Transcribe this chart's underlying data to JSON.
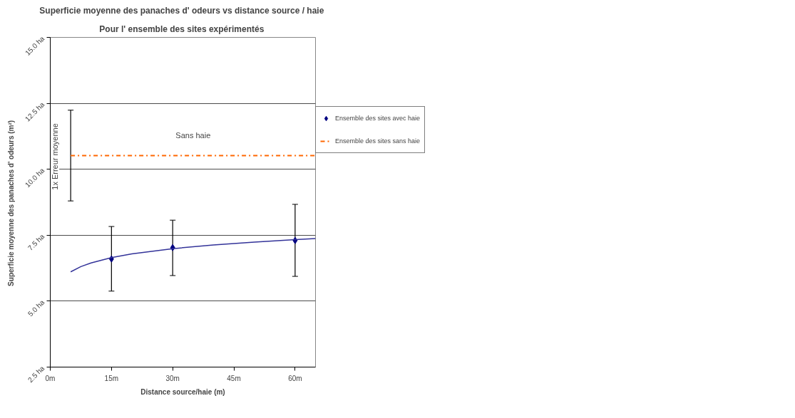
{
  "chart_data": {
    "type": "scatter",
    "title": "Superficie moyenne des panaches d'  odeurs vs distance source / haie",
    "subtitle": "Pour l'  ensemble des sites expérimentés",
    "xlabel": "Distance source/haie (m)",
    "ylabel": "Superficie moyenne des panaches d'  odeurs (m²)",
    "xlim": [
      0,
      65
    ],
    "xticks": [
      {
        "value": 0,
        "label": "0m"
      },
      {
        "value": 15,
        "label": "15m"
      },
      {
        "value": 30,
        "label": "30m"
      },
      {
        "value": 45,
        "label": "45m"
      },
      {
        "value": 60,
        "label": "60m"
      }
    ],
    "ylim": [
      2.5,
      15
    ],
    "yticks": [
      {
        "value": 2.5,
        "label": "2.5 ha"
      },
      {
        "value": 5,
        "label": "5.0 ha"
      },
      {
        "value": 7.5,
        "label": "7.5 ha"
      },
      {
        "value": 10,
        "label": "10.0 ha"
      },
      {
        "value": 12.5,
        "label": "12.5 ha"
      },
      {
        "value": 15,
        "label": "15.0 ha"
      }
    ],
    "grid": "y",
    "legend": "right",
    "series": [
      {
        "name": "Ensemble des sites avec haie",
        "color": "#000080",
        "marker": "diamond",
        "x": [
          15,
          30,
          60
        ],
        "values": [
          6.6,
          7.03,
          7.3
        ],
        "errors": [
          [
            5.38,
            7.83
          ],
          [
            5.97,
            8.07
          ],
          [
            5.94,
            8.67
          ]
        ]
      },
      {
        "type": "line",
        "color": "#333399",
        "marker": "none",
        "line_style": "solid",
        "x": [
          5,
          7.5,
          10,
          15,
          20,
          30,
          40,
          50,
          60,
          65
        ],
        "values": [
          6.11,
          6.31,
          6.45,
          6.65,
          6.79,
          6.99,
          7.13,
          7.24,
          7.33,
          7.37
        ]
      },
      {
        "type": "line",
        "name": "Ensemble des sites sans haie",
        "color": "#ff6600",
        "marker": "none",
        "line_style": "dashdot",
        "x": [
          5,
          65
        ],
        "values": [
          10.52,
          10.52
        ],
        "errors": [
          [
            8.8,
            12.24
          ],
          null
        ]
      }
    ],
    "annotations": [
      "1x  Erreur moyenne",
      "Sans haie"
    ]
  }
}
